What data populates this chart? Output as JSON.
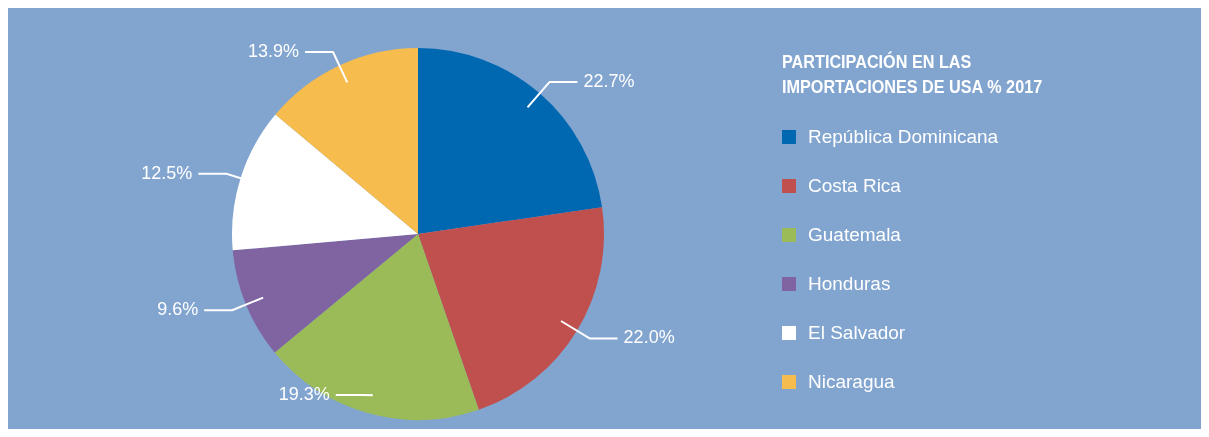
{
  "chart_data": {
    "type": "pie",
    "legend_title": "PARTICIPACIÓN EN LAS IMPORTACIONES DE USA % 2017",
    "categories": [
      "República Dominicana",
      "Costa Rica",
      "Guatemala",
      "Honduras",
      "El Salvador",
      "Nicaragua"
    ],
    "values": [
      22.7,
      22.0,
      19.3,
      9.6,
      12.5,
      13.9
    ],
    "value_labels": [
      "22.7%",
      "22.0%",
      "19.3%",
      "9.6%",
      "12.5%",
      "13.9%"
    ],
    "colors": [
      "#0067b1",
      "#c0504d",
      "#9bbb59",
      "#8064a2",
      "#ffffff",
      "#f6bc4e"
    ],
    "legend": "right"
  }
}
